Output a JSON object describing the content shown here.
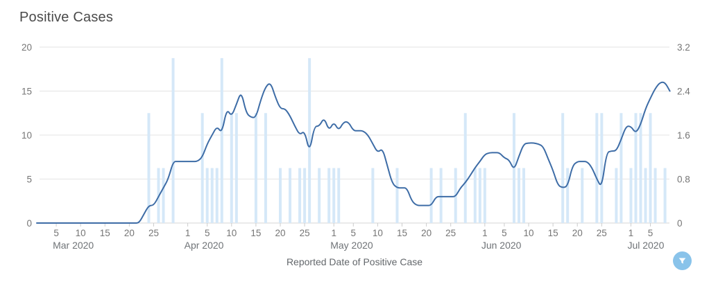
{
  "title": "Positive Cases",
  "fab": {
    "label": "Filter",
    "icon": "filter-funnel-icon",
    "color": "#89c3ea"
  },
  "colors": {
    "line": "#3d6ca6",
    "bar": "#d5e8f8",
    "grid": "#e3e3e3",
    "axis_text": "#757575",
    "title_text": "#4a4a4a"
  },
  "chart_data": {
    "type": "line+bar",
    "title": "Positive Cases",
    "xlabel": "Reported Date of Positive Case",
    "grid": "horizontal",
    "legend": "none",
    "left_axis": {
      "range": [
        0,
        20
      ],
      "tick_labels": [
        "0",
        "5",
        "10",
        "15",
        "20"
      ],
      "tick_values": [
        0,
        5,
        10,
        15,
        20
      ]
    },
    "right_axis": {
      "range": [
        0,
        3.2
      ],
      "tick_labels": [
        "0",
        "0.8",
        "1.6",
        "2.4",
        "3.2"
      ],
      "tick_values": [
        0,
        0.8,
        1.6,
        2.4,
        3.2
      ]
    },
    "x_axis": {
      "start_date": "2020-03-01",
      "end_date": "2020-07-09",
      "ticks": [
        {
          "day_index": 4,
          "label": "5"
        },
        {
          "day_index": 9,
          "label": "10"
        },
        {
          "day_index": 14,
          "label": "15"
        },
        {
          "day_index": 19,
          "label": "20"
        },
        {
          "day_index": 24,
          "label": "25"
        },
        {
          "day_index": 31,
          "label": "1"
        },
        {
          "day_index": 35,
          "label": "5"
        },
        {
          "day_index": 40,
          "label": "10"
        },
        {
          "day_index": 45,
          "label": "15"
        },
        {
          "day_index": 50,
          "label": "20"
        },
        {
          "day_index": 55,
          "label": "25"
        },
        {
          "day_index": 61,
          "label": "1"
        },
        {
          "day_index": 65,
          "label": "5"
        },
        {
          "day_index": 70,
          "label": "10"
        },
        {
          "day_index": 75,
          "label": "15"
        },
        {
          "day_index": 80,
          "label": "20"
        },
        {
          "day_index": 85,
          "label": "25"
        },
        {
          "day_index": 92,
          "label": "1"
        },
        {
          "day_index": 96,
          "label": "5"
        },
        {
          "day_index": 101,
          "label": "10"
        },
        {
          "day_index": 106,
          "label": "15"
        },
        {
          "day_index": 111,
          "label": "20"
        },
        {
          "day_index": 116,
          "label": "25"
        },
        {
          "day_index": 122,
          "label": "1"
        },
        {
          "day_index": 126,
          "label": "5"
        }
      ],
      "month_labels": [
        {
          "day_index": 4,
          "label": "Mar 2020"
        },
        {
          "day_index": 31,
          "label": "Apr 2020"
        },
        {
          "day_index": 61,
          "label": "May 2020"
        },
        {
          "day_index": 92,
          "label": "Jun 2020"
        },
        {
          "day_index": 122,
          "label": "Jul 2020"
        }
      ]
    },
    "line_series": {
      "name": "rolling-positive-cases-trend",
      "axis": "left",
      "start_date": "2020-03-01",
      "values": [
        0,
        0,
        0,
        0,
        0,
        0,
        0,
        0,
        0,
        0,
        0,
        0,
        0,
        0,
        0,
        0,
        0,
        0,
        0,
        0,
        0,
        0,
        1,
        2,
        2,
        3,
        4,
        5,
        7,
        7,
        7,
        7,
        7,
        7,
        7.5,
        9,
        10,
        11,
        10.2,
        13,
        12.1,
        13.5,
        15,
        12.5,
        12,
        12,
        14,
        15.5,
        16,
        14.3,
        13,
        13,
        12.2,
        11,
        10,
        10.5,
        8,
        11,
        11,
        12,
        10.5,
        11.5,
        10.5,
        11.5,
        11.5,
        10.5,
        10.5,
        10.5,
        10,
        9,
        8,
        8.5,
        6.5,
        4.5,
        4,
        4,
        4,
        2.5,
        2,
        2,
        2,
        2,
        3,
        3,
        3,
        3,
        3,
        4,
        4.6,
        5.4,
        6.3,
        7,
        7.8,
        8,
        8,
        8,
        7.4,
        7.2,
        6,
        7.6,
        9,
        9.1,
        9.1,
        9,
        8.7,
        7.3,
        6,
        4.3,
        4,
        4.2,
        6.5,
        7,
        7,
        7,
        6.3,
        5,
        4,
        8,
        8.2,
        8.2,
        9.5,
        11,
        11,
        10.2,
        11.2,
        13,
        14.2,
        15.3,
        16,
        16,
        15
      ]
    },
    "bar_series": {
      "name": "daily-positive-cases",
      "axis": "right",
      "points": [
        {
          "date": "2020-03-24",
          "cases": 2
        },
        {
          "date": "2020-03-26",
          "cases": 1
        },
        {
          "date": "2020-03-27",
          "cases": 1
        },
        {
          "date": "2020-03-29",
          "cases": 3
        },
        {
          "date": "2020-04-04",
          "cases": 2
        },
        {
          "date": "2020-04-05",
          "cases": 1
        },
        {
          "date": "2020-04-06",
          "cases": 1
        },
        {
          "date": "2020-04-07",
          "cases": 1
        },
        {
          "date": "2020-04-08",
          "cases": 3
        },
        {
          "date": "2020-04-10",
          "cases": 2
        },
        {
          "date": "2020-04-11",
          "cases": 2
        },
        {
          "date": "2020-04-15",
          "cases": 2
        },
        {
          "date": "2020-04-17",
          "cases": 2
        },
        {
          "date": "2020-04-20",
          "cases": 1
        },
        {
          "date": "2020-04-22",
          "cases": 1
        },
        {
          "date": "2020-04-24",
          "cases": 1
        },
        {
          "date": "2020-04-25",
          "cases": 1
        },
        {
          "date": "2020-04-26",
          "cases": 3
        },
        {
          "date": "2020-04-28",
          "cases": 1
        },
        {
          "date": "2020-04-30",
          "cases": 1
        },
        {
          "date": "2020-05-01",
          "cases": 1
        },
        {
          "date": "2020-05-02",
          "cases": 1
        },
        {
          "date": "2020-05-09",
          "cases": 1
        },
        {
          "date": "2020-05-14",
          "cases": 1
        },
        {
          "date": "2020-05-21",
          "cases": 1
        },
        {
          "date": "2020-05-23",
          "cases": 1
        },
        {
          "date": "2020-05-26",
          "cases": 1
        },
        {
          "date": "2020-05-28",
          "cases": 2
        },
        {
          "date": "2020-05-30",
          "cases": 1
        },
        {
          "date": "2020-05-31",
          "cases": 1
        },
        {
          "date": "2020-06-01",
          "cases": 1
        },
        {
          "date": "2020-06-07",
          "cases": 2
        },
        {
          "date": "2020-06-08",
          "cases": 1
        },
        {
          "date": "2020-06-09",
          "cases": 1
        },
        {
          "date": "2020-06-17",
          "cases": 2
        },
        {
          "date": "2020-06-18",
          "cases": 1
        },
        {
          "date": "2020-06-21",
          "cases": 1
        },
        {
          "date": "2020-06-24",
          "cases": 2
        },
        {
          "date": "2020-06-25",
          "cases": 2
        },
        {
          "date": "2020-06-28",
          "cases": 1
        },
        {
          "date": "2020-06-29",
          "cases": 2
        },
        {
          "date": "2020-07-01",
          "cases": 1
        },
        {
          "date": "2020-07-02",
          "cases": 2
        },
        {
          "date": "2020-07-03",
          "cases": 2
        },
        {
          "date": "2020-07-04",
          "cases": 1
        },
        {
          "date": "2020-07-05",
          "cases": 2
        },
        {
          "date": "2020-07-06",
          "cases": 1
        },
        {
          "date": "2020-07-08",
          "cases": 1
        }
      ]
    }
  }
}
